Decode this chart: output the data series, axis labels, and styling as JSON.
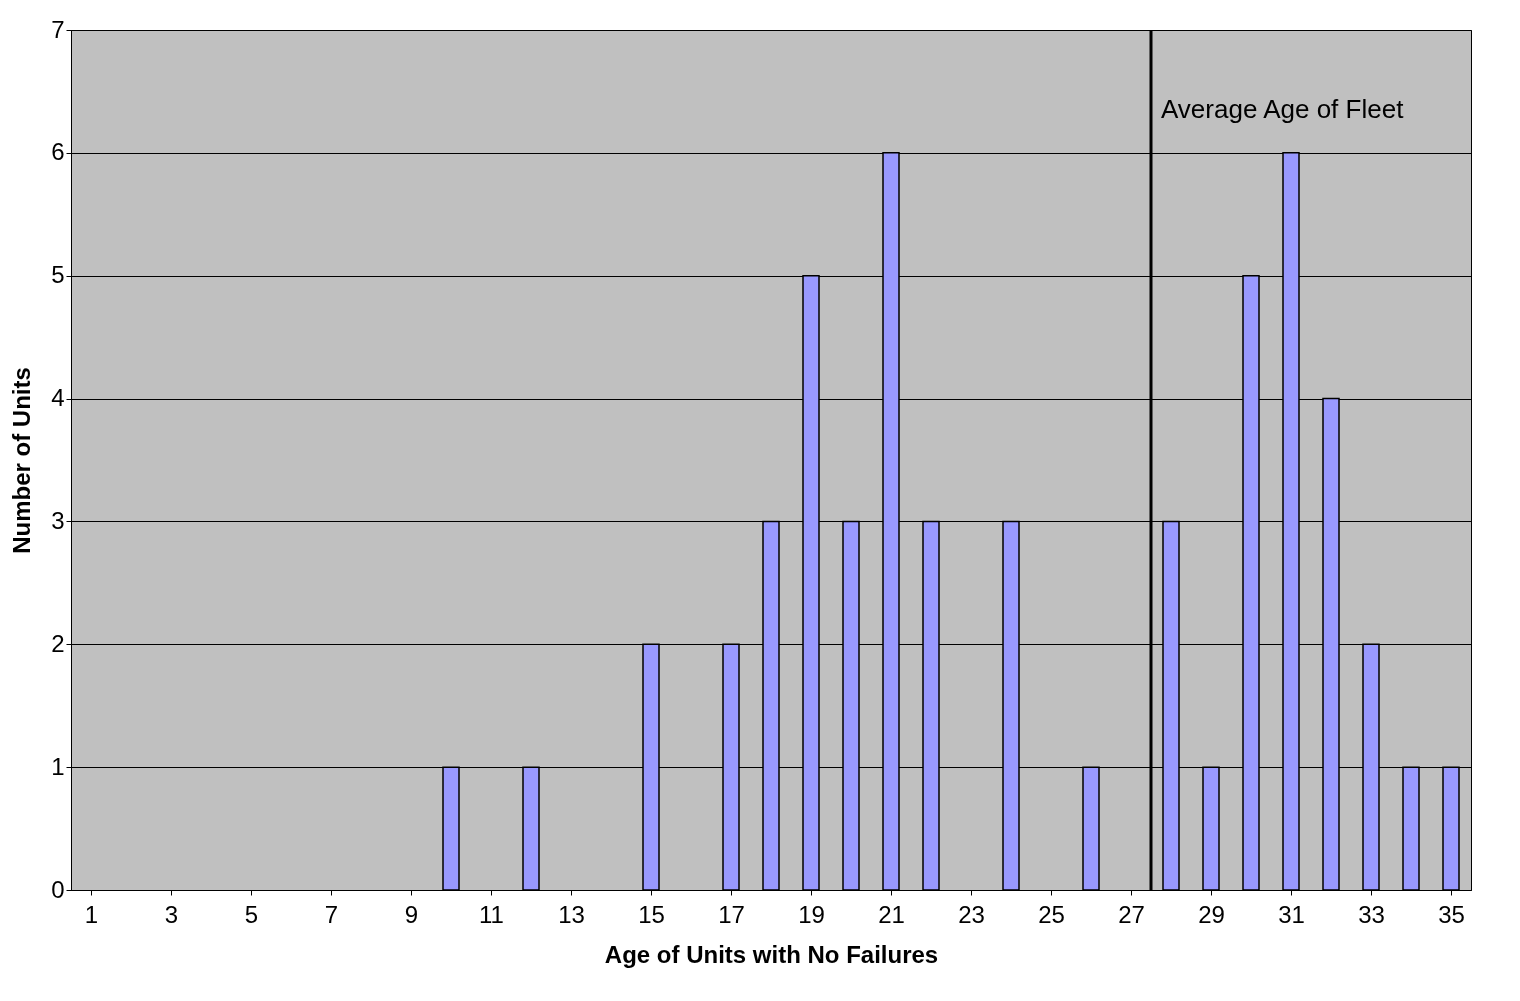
{
  "chart_data": {
    "type": "bar",
    "xlabel": "Age of Units with No Failures",
    "ylabel": "Number of Units",
    "x": [
      1,
      2,
      3,
      4,
      5,
      6,
      7,
      8,
      9,
      10,
      11,
      12,
      13,
      14,
      15,
      16,
      17,
      18,
      19,
      20,
      21,
      22,
      23,
      24,
      25,
      26,
      27,
      28,
      29,
      30,
      31,
      32,
      33,
      34,
      35
    ],
    "values": [
      0,
      0,
      0,
      0,
      0,
      0,
      0,
      0,
      0,
      1,
      0,
      1,
      0,
      0,
      2,
      0,
      2,
      3,
      5,
      3,
      6,
      3,
      0,
      3,
      0,
      1,
      0,
      3,
      1,
      5,
      6,
      4,
      2,
      1,
      1
    ],
    "color": "#9999ff",
    "xlim": [
      0.5,
      35.5
    ],
    "xticks": [
      1,
      3,
      5,
      7,
      9,
      11,
      13,
      15,
      17,
      19,
      21,
      23,
      25,
      27,
      29,
      31,
      33,
      35
    ],
    "ylim": [
      0,
      7
    ],
    "yticks": [
      0,
      1,
      2,
      3,
      4,
      5,
      6,
      7
    ],
    "ref_lines": [
      {
        "axis": "x",
        "value": 27.5,
        "label": "Average Age of Fleet",
        "color": "#000000"
      }
    ],
    "grid": "y"
  }
}
